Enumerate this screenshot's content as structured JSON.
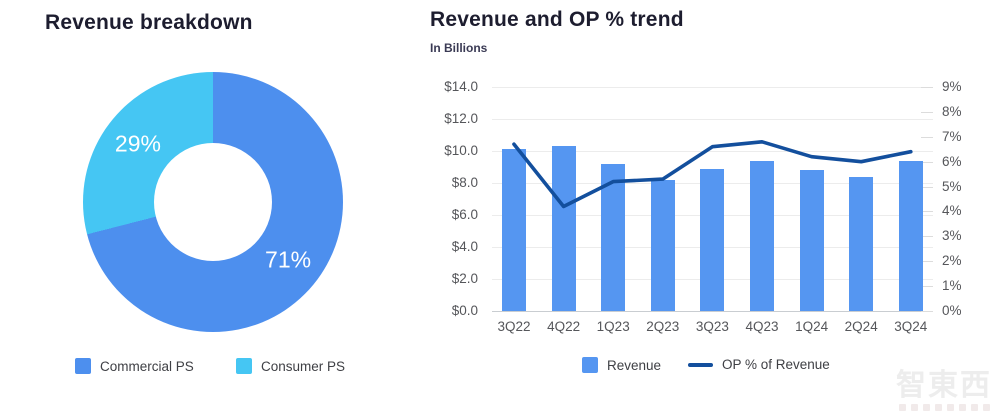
{
  "watermark": {
    "text": "智東西"
  },
  "chart_data": [
    {
      "type": "pie",
      "title": "Revenue breakdown",
      "donut": true,
      "labels": [
        "Commercial PS",
        "Consumer PS"
      ],
      "values": [
        71,
        29
      ],
      "value_labels": [
        "71%",
        "29%"
      ],
      "colors": [
        "#4D8FEE",
        "#45C6F3"
      ],
      "legend_position": "bottom"
    },
    {
      "type": "combo",
      "title": "Revenue and OP % trend",
      "subtitle": "In Billions",
      "categories": [
        "3Q22",
        "4Q22",
        "1Q23",
        "2Q23",
        "3Q23",
        "4Q23",
        "1Q24",
        "2Q24",
        "3Q24"
      ],
      "series": [
        {
          "name": "Revenue",
          "kind": "bar",
          "axis": "left",
          "color": "#5596F1",
          "values": [
            10.1,
            10.3,
            9.2,
            8.2,
            8.9,
            9.4,
            8.8,
            8.4,
            9.4
          ]
        },
        {
          "name": "OP % of Revenue",
          "kind": "line",
          "axis": "right",
          "color": "#134F9D",
          "values": [
            6.7,
            4.2,
            5.2,
            5.3,
            6.6,
            6.8,
            6.2,
            6.0,
            6.4
          ]
        }
      ],
      "left_axis": {
        "min": 0,
        "max": 14,
        "tick_step": 2,
        "tick_labels": [
          "$0.0",
          "$2.0",
          "$4.0",
          "$6.0",
          "$8.0",
          "$10.0",
          "$12.0",
          "$14.0"
        ]
      },
      "right_axis": {
        "min": 0,
        "max": 9,
        "tick_step": 1,
        "tick_labels": [
          "0%",
          "1%",
          "2%",
          "3%",
          "4%",
          "5%",
          "6%",
          "7%",
          "8%",
          "9%"
        ]
      },
      "grid": true,
      "legend_position": "bottom"
    }
  ]
}
